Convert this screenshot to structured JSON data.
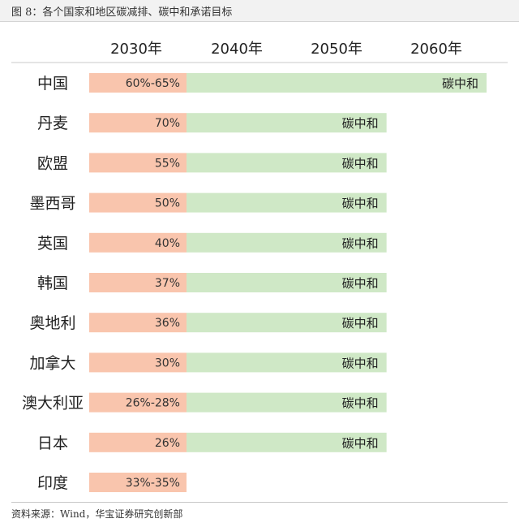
{
  "chart_data": {
    "type": "table",
    "title": "图 8：各个国家和地区碳减排、碳中和承诺目标",
    "columns": [
      "2030年",
      "2040年",
      "2050年",
      "2060年"
    ],
    "x_range": [
      2030,
      2060
    ],
    "colors": {
      "reduction": "#f9c5ad",
      "neutrality": "#cfe8c6",
      "rule": "#c8c8c8"
    },
    "rows": [
      {
        "label": "中国",
        "reduction": "60%-65%",
        "neutral_label": "碳中和",
        "neutral_year": 2060
      },
      {
        "label": "丹麦",
        "reduction": "70%",
        "neutral_label": "碳中和",
        "neutral_year": 2050
      },
      {
        "label": "欧盟",
        "reduction": "55%",
        "neutral_label": "碳中和",
        "neutral_year": 2050
      },
      {
        "label": "墨西哥",
        "reduction": "50%",
        "neutral_label": "碳中和",
        "neutral_year": 2050
      },
      {
        "label": "英国",
        "reduction": "40%",
        "neutral_label": "碳中和",
        "neutral_year": 2050
      },
      {
        "label": "韩国",
        "reduction": "37%",
        "neutral_label": "碳中和",
        "neutral_year": 2050
      },
      {
        "label": "奥地利",
        "reduction": "36%",
        "neutral_label": "碳中和",
        "neutral_year": 2050
      },
      {
        "label": "加拿大",
        "reduction": "30%",
        "neutral_label": "碳中和",
        "neutral_year": 2050
      },
      {
        "label": "澳大利亚",
        "reduction": "26%-28%",
        "neutral_label": "碳中和",
        "neutral_year": 2050
      },
      {
        "label": "日本",
        "reduction": "26%",
        "neutral_label": "碳中和",
        "neutral_year": 2050
      },
      {
        "label": "印度",
        "reduction": "33%-35%",
        "neutral_label": "",
        "neutral_year": null
      }
    ]
  },
  "source": "资料来源：Wind，华宝证券研究创新部"
}
